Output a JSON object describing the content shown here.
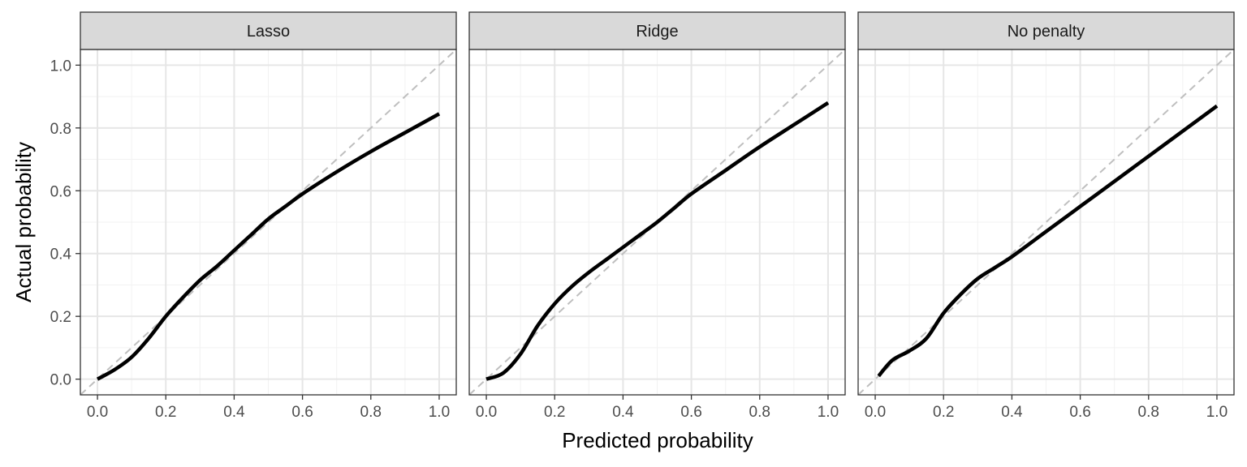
{
  "chart_data": {
    "type": "line",
    "xlabel": "Predicted probability",
    "ylabel": "Actual probability",
    "xlim": [
      -0.05,
      1.05
    ],
    "ylim": [
      -0.05,
      1.05
    ],
    "x_ticks": [
      "0.0",
      "0.2",
      "0.4",
      "0.6",
      "0.8",
      "1.0"
    ],
    "y_ticks": [
      "0.0",
      "0.2",
      "0.4",
      "0.6",
      "0.8",
      "1.0"
    ],
    "grid": true,
    "reference_line": {
      "type": "diagonal",
      "style": "dashed",
      "color": "#bfbfbf"
    },
    "line_color": "#000000",
    "panels": [
      {
        "title": "Lasso",
        "points": [
          [
            0.0,
            0.0
          ],
          [
            0.05,
            0.03
          ],
          [
            0.1,
            0.07
          ],
          [
            0.15,
            0.13
          ],
          [
            0.2,
            0.2
          ],
          [
            0.25,
            0.26
          ],
          [
            0.3,
            0.315
          ],
          [
            0.35,
            0.36
          ],
          [
            0.4,
            0.41
          ],
          [
            0.45,
            0.46
          ],
          [
            0.5,
            0.51
          ],
          [
            0.55,
            0.55
          ],
          [
            0.6,
            0.59
          ],
          [
            0.7,
            0.66
          ],
          [
            0.8,
            0.725
          ],
          [
            0.9,
            0.785
          ],
          [
            1.0,
            0.845
          ]
        ]
      },
      {
        "title": "Ridge",
        "points": [
          [
            0.0,
            0.0
          ],
          [
            0.05,
            0.02
          ],
          [
            0.1,
            0.08
          ],
          [
            0.15,
            0.17
          ],
          [
            0.2,
            0.24
          ],
          [
            0.25,
            0.295
          ],
          [
            0.3,
            0.34
          ],
          [
            0.35,
            0.38
          ],
          [
            0.4,
            0.42
          ],
          [
            0.45,
            0.46
          ],
          [
            0.5,
            0.5
          ],
          [
            0.55,
            0.545
          ],
          [
            0.6,
            0.59
          ],
          [
            0.7,
            0.665
          ],
          [
            0.8,
            0.74
          ],
          [
            0.9,
            0.81
          ],
          [
            1.0,
            0.88
          ]
        ]
      },
      {
        "title": "No penalty",
        "points": [
          [
            0.01,
            0.01
          ],
          [
            0.05,
            0.06
          ],
          [
            0.1,
            0.09
          ],
          [
            0.15,
            0.13
          ],
          [
            0.2,
            0.21
          ],
          [
            0.25,
            0.27
          ],
          [
            0.3,
            0.32
          ],
          [
            0.35,
            0.355
          ],
          [
            0.4,
            0.39
          ],
          [
            0.5,
            0.47
          ],
          [
            0.6,
            0.55
          ],
          [
            0.7,
            0.63
          ],
          [
            0.8,
            0.71
          ],
          [
            0.9,
            0.79
          ],
          [
            1.0,
            0.87
          ]
        ]
      }
    ]
  }
}
